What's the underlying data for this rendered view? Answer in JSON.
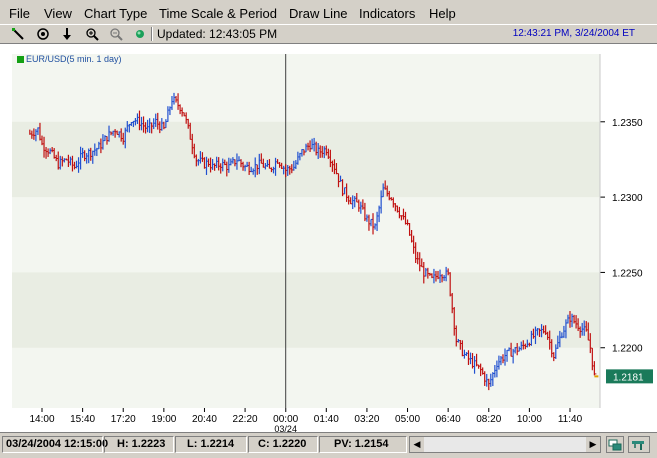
{
  "menu": [
    "File",
    "View",
    "Chart Type",
    "Time Scale & Period",
    "Draw Line",
    "Indicators",
    "Help"
  ],
  "toolbar": {
    "icons": [
      "draw-line-icon",
      "crosshair-icon",
      "down-arrow-icon",
      "zoom-in-icon",
      "zoom-out-icon",
      "status-dot-icon"
    ],
    "updated": "Updated: 12:43:05 PM",
    "clock": "12:43:21 PM, 3/24/2004 ET"
  },
  "legend": {
    "label": "EUR/USD(5 min.  1 day)",
    "color": "#14a014"
  },
  "chart_data": {
    "type": "line",
    "series": [
      {
        "name": "EUR/USD(5 min.  1 day)",
        "x": [
          "13:30",
          "13:50",
          "14:00",
          "14:20",
          "14:40",
          "15:00",
          "15:20",
          "15:40",
          "16:00",
          "16:20",
          "16:40",
          "17:00",
          "17:20",
          "17:40",
          "18:00",
          "18:20",
          "18:40",
          "19:00",
          "19:20",
          "19:40",
          "19:50",
          "20:00",
          "20:20",
          "20:40",
          "20:50",
          "21:00",
          "21:20",
          "21:40",
          "22:00",
          "22:20",
          "22:40",
          "23:00",
          "23:20",
          "23:40",
          "00:00",
          "00:20",
          "00:40",
          "01:00",
          "01:20",
          "01:40",
          "02:00",
          "02:20",
          "02:40",
          "03:00",
          "03:20",
          "03:40",
          "04:00",
          "04:20",
          "04:40",
          "05:00",
          "05:20",
          "05:40",
          "06:00",
          "06:20",
          "06:40",
          "07:00",
          "07:20",
          "07:40",
          "08:00",
          "08:20",
          "08:40",
          "09:00",
          "09:20",
          "09:40",
          "10:00",
          "10:20",
          "10:40",
          "11:00",
          "11:20",
          "11:40",
          "12:00",
          "12:20",
          "12:30",
          "12:40"
        ],
        "values": [
          1.2342,
          1.2345,
          1.2335,
          1.233,
          1.2322,
          1.2325,
          1.232,
          1.2328,
          1.233,
          1.2333,
          1.234,
          1.2345,
          1.234,
          1.2352,
          1.235,
          1.2345,
          1.235,
          1.2345,
          1.2365,
          1.236,
          1.2355,
          1.2345,
          1.2325,
          1.2322,
          1.2323,
          1.232,
          1.2322,
          1.232,
          1.2325,
          1.232,
          1.232,
          1.2322,
          1.2318,
          1.2325,
          1.2318,
          1.232,
          1.233,
          1.2335,
          1.233,
          1.2332,
          1.232,
          1.2305,
          1.2298,
          1.2295,
          1.2285,
          1.228,
          1.2305,
          1.23,
          1.229,
          1.228,
          1.226,
          1.225,
          1.2245,
          1.225,
          1.2248,
          1.2205,
          1.2195,
          1.219,
          1.2185,
          1.2175,
          1.219,
          1.2195,
          1.2198,
          1.22,
          1.2205,
          1.221,
          1.2212,
          1.2195,
          1.221,
          1.222,
          1.2215,
          1.221,
          1.22,
          1.2181
        ]
      }
    ],
    "x_ticks": [
      "14:00",
      "15:40",
      "17:20",
      "19:00",
      "20:40",
      "22:20",
      "00:00",
      "01:40",
      "03:20",
      "05:00",
      "06:40",
      "08:20",
      "10:00",
      "11:40"
    ],
    "x_tick_sublabel": "03/24",
    "y_ticks": [
      "1.2350",
      "1.2300",
      "1.2250",
      "1.2200"
    ],
    "y_range": [
      1.216,
      1.2395
    ],
    "last_value": "1.2181",
    "last_value_color": "#1a7a5a",
    "bar_colors": {
      "up": "#2050d0",
      "down": "#c01010"
    },
    "band_colors": [
      "#f3f6f0",
      "#e9ede3"
    ]
  },
  "status": {
    "date": "03/24/2004 12:15:00",
    "high": "H: 1.2223",
    "low": "L: 1.2214",
    "close": "C: 1.2220",
    "pv": "PV: 1.2154"
  }
}
